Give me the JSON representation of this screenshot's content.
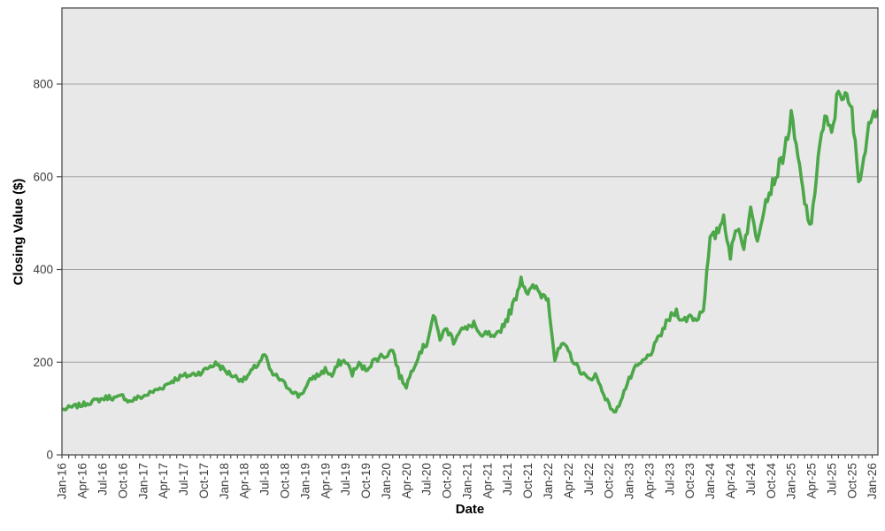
{
  "chart_data": {
    "type": "line",
    "title": "",
    "xlabel": "Date",
    "ylabel": "Closing Value ($)",
    "x_tick_labels": [
      "Jan-16",
      "Apr-16",
      "Jul-16",
      "Oct-16",
      "Jan-17",
      "Apr-17",
      "Jul-17",
      "Oct-17",
      "Jan-18",
      "Apr-18",
      "Jul-18",
      "Oct-18",
      "Jan-19",
      "Apr-19",
      "Jul-19",
      "Oct-19",
      "Jan-20",
      "Apr-20",
      "Jul-20",
      "Oct-20",
      "Jan-21",
      "Apr-21",
      "Jul-21",
      "Oct-21",
      "Jan-22",
      "Apr-22",
      "Jul-22",
      "Oct-22",
      "Jan-23",
      "Apr-23",
      "Jul-23",
      "Oct-23",
      "Jan-24",
      "Apr-24",
      "Jul-24",
      "Oct-24",
      "Jan-25",
      "Apr-25",
      "Jul-25",
      "Oct-25",
      "Jan-26"
    ],
    "y_ticks": [
      0,
      200,
      400,
      600,
      800
    ],
    "ylim": [
      0,
      960
    ],
    "grid": "horizontal-major",
    "legend": "none",
    "x_minor_tick_interval": "monthly",
    "series": [
      {
        "name": "Closing Value",
        "color": "#4ca749",
        "x_start": "Jan-16",
        "x_step": "1 month",
        "values_monthly": [
          97,
          101,
          105,
          108,
          113,
          117,
          121,
          125,
          122,
          127,
          115,
          122,
          126,
          133,
          140,
          147,
          157,
          165,
          170,
          172,
          176,
          181,
          192,
          197,
          183,
          174,
          166,
          162,
          178,
          196,
          216,
          176,
          167,
          152,
          140,
          127,
          141,
          166,
          172,
          184,
          170,
          198,
          203,
          176,
          195,
          184,
          200,
          212,
          215,
          228,
          170,
          149,
          188,
          222,
          240,
          300,
          253,
          272,
          246,
          272,
          270,
          286,
          251,
          263,
          248,
          272,
          296,
          330,
          383,
          348,
          362,
          346,
          341,
          206,
          238,
          224,
          196,
          178,
          162,
          173,
          140,
          108,
          90,
          128,
          162,
          188,
          200,
          215,
          240,
          270,
          295,
          310,
          288,
          300,
          292,
          318,
          462,
          478,
          515,
          430,
          495,
          452,
          525,
          468,
          540,
          575,
          612,
          655,
          728,
          640,
          545,
          487,
          650,
          725,
          690,
          788,
          772,
          740,
          592,
          658,
          745,
          748
        ]
      }
    ],
    "annotations": []
  },
  "style": {
    "plot_bg": "#e8e8e8",
    "page_bg": "#ffffff",
    "grid_color": "#a2a2a2",
    "border_color": "#4d4d4d",
    "tick_color": "#4d4d4d",
    "tick_label_color": "#3c3c3c",
    "axis_title_color": "#000000",
    "line_width": 3.6
  }
}
